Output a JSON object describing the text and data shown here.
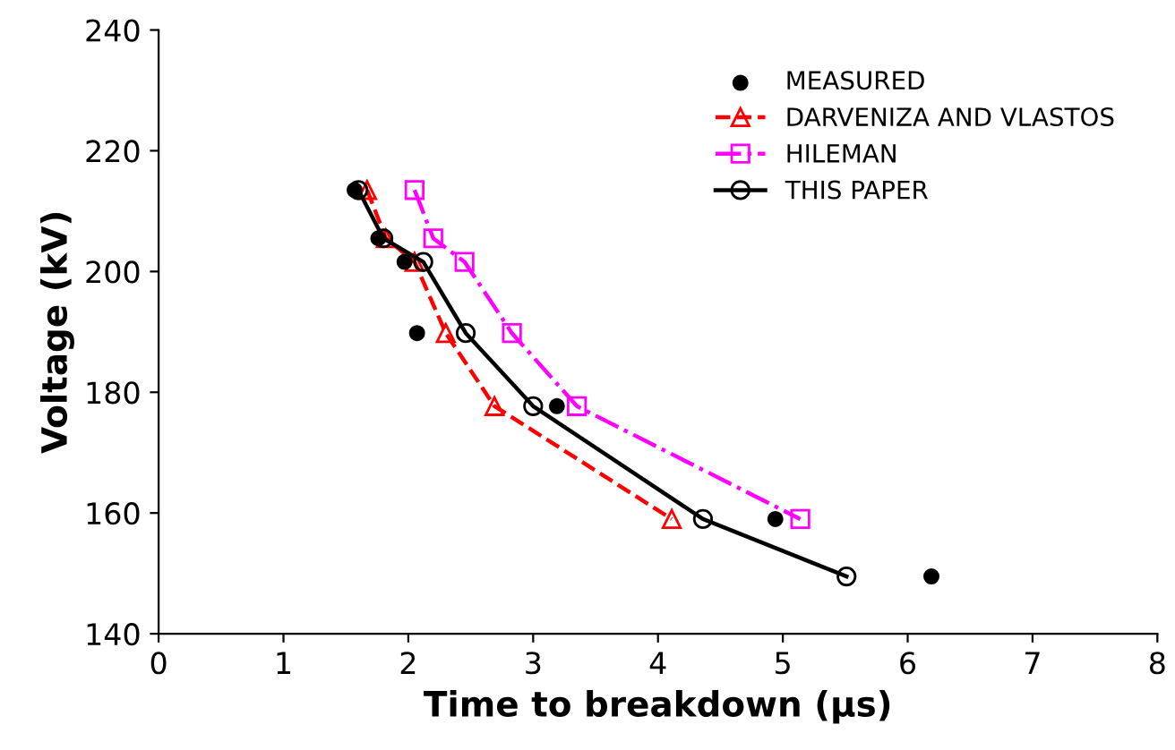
{
  "chart_data": {
    "type": "line",
    "xlabel": "Time to breakdown (µs)",
    "ylabel": "Voltage (kV)",
    "xlim": [
      0,
      8
    ],
    "xticks": [
      0,
      1,
      2,
      3,
      4,
      5,
      6,
      7,
      8
    ],
    "ylim": [
      140,
      240
    ],
    "yticks": [
      140,
      160,
      180,
      200,
      220,
      240
    ],
    "grid": false,
    "legend": "top right",
    "series": [
      {
        "name": "MEASURED",
        "type": "scatter",
        "color": "#000000",
        "marker": "circle",
        "x": [
          1.57,
          1.76,
          1.97,
          2.07,
          3.19,
          4.94,
          6.19
        ],
        "values": [
          213.5,
          205.5,
          201.6,
          189.8,
          177.7,
          159,
          149.5
        ]
      },
      {
        "name": "DARVENIZA AND VLASTOS",
        "color": "#ff0000",
        "marker": "triangle",
        "line_style": "dashed",
        "x": [
          1.67,
          1.82,
          2.05,
          2.3,
          2.69,
          4.11
        ],
        "values": [
          213.5,
          205.5,
          201.6,
          189.8,
          177.7,
          159
        ]
      },
      {
        "name": "HILEMAN",
        "color": "#ff00ff",
        "marker": "square",
        "line_style": "dashdot",
        "x": [
          2.05,
          2.2,
          2.45,
          2.83,
          3.35,
          5.14
        ],
        "values": [
          213.5,
          205.5,
          201.6,
          189.8,
          177.7,
          159
        ]
      },
      {
        "name": "THIS PAPER",
        "color": "#000000",
        "marker": "circle",
        "line_style": "solid",
        "x": [
          1.6,
          1.8,
          2.12,
          2.46,
          3.0,
          4.36,
          5.51
        ],
        "values": [
          213.5,
          205.5,
          201.6,
          189.8,
          177.7,
          159,
          149.5
        ]
      }
    ]
  }
}
